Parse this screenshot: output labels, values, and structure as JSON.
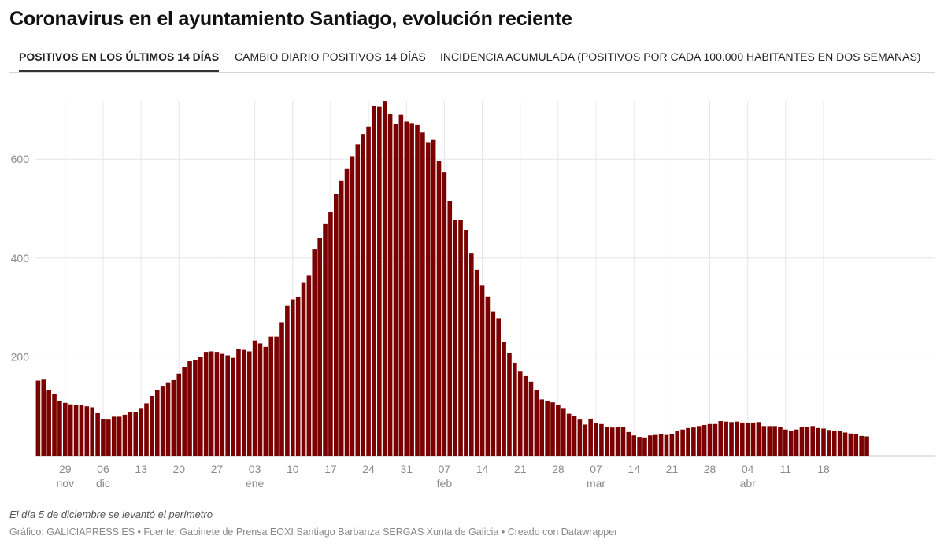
{
  "title": "Coronavirus en el ayuntamiento Santiago, evolución reciente",
  "tabs": [
    {
      "label": "POSITIVOS EN LOS ÚLTIMOS 14 DÍAS",
      "active": true
    },
    {
      "label": "CAMBIO DIARIO POSITIVOS 14 DÍAS",
      "active": false
    },
    {
      "label": "INCIDENCIA ACUMULADA (POSITIVOS POR CADA 100.000 HABITANTES EN DOS SEMANAS)",
      "active": false
    }
  ],
  "note": "El día 5 de diciembre se levantó el perímetro",
  "footer": "Gráfico: GALICIAPRESS.ES • Fuente: Gabinete de Prensa EOXI Santiago Barbanza SERGAS Xunta de Galicia • Creado con Datawrapper",
  "colors": {
    "bar": "#7b0000",
    "grid": "#e6e6e6",
    "axis": "#333333"
  },
  "chart_data": {
    "type": "bar",
    "start_date": "2020-11-24",
    "ylim": [
      0,
      720
    ],
    "yticks": [
      200,
      400,
      600
    ],
    "grid": true,
    "x_ticks": [
      {
        "label": "29",
        "sub": "nov"
      },
      {
        "label": "06",
        "sub": "dic"
      },
      {
        "label": "13",
        "sub": ""
      },
      {
        "label": "20",
        "sub": ""
      },
      {
        "label": "27",
        "sub": ""
      },
      {
        "label": "03",
        "sub": "ene"
      },
      {
        "label": "10",
        "sub": ""
      },
      {
        "label": "17",
        "sub": ""
      },
      {
        "label": "24",
        "sub": ""
      },
      {
        "label": "31",
        "sub": ""
      },
      {
        "label": "07",
        "sub": "feb"
      },
      {
        "label": "14",
        "sub": ""
      },
      {
        "label": "21",
        "sub": ""
      },
      {
        "label": "28",
        "sub": ""
      },
      {
        "label": "07",
        "sub": "mar"
      },
      {
        "label": "14",
        "sub": ""
      },
      {
        "label": "21",
        "sub": ""
      },
      {
        "label": "28",
        "sub": ""
      },
      {
        "label": "04",
        "sub": "abr"
      },
      {
        "label": "11",
        "sub": ""
      },
      {
        "label": "18",
        "sub": ""
      }
    ],
    "values": [
      152,
      154,
      133,
      125,
      110,
      107,
      104,
      103,
      103,
      100,
      98,
      86,
      74,
      73,
      79,
      79,
      83,
      88,
      89,
      95,
      106,
      121,
      133,
      140,
      147,
      153,
      166,
      180,
      191,
      193,
      200,
      210,
      211,
      210,
      206,
      203,
      198,
      215,
      214,
      211,
      233,
      227,
      220,
      241,
      241,
      270,
      303,
      316,
      321,
      351,
      364,
      417,
      441,
      470,
      493,
      530,
      556,
      580,
      606,
      630,
      651,
      666,
      707,
      706,
      718,
      691,
      672,
      690,
      676,
      673,
      669,
      654,
      633,
      639,
      597,
      573,
      515,
      477,
      477,
      457,
      409,
      376,
      345,
      322,
      292,
      278,
      230,
      207,
      188,
      170,
      161,
      150,
      133,
      114,
      111,
      108,
      103,
      95,
      85,
      80,
      73,
      63,
      75,
      66,
      64,
      58,
      57,
      58,
      58,
      48,
      41,
      38,
      37,
      41,
      42,
      43,
      42,
      44,
      51,
      53,
      56,
      57,
      60,
      62,
      64,
      64,
      70,
      69,
      68,
      69,
      67,
      67,
      67,
      68,
      60,
      60,
      60,
      58,
      53,
      51,
      53,
      58,
      59,
      60,
      56,
      55,
      52,
      50,
      51,
      47,
      45,
      43,
      40,
      39
    ]
  }
}
